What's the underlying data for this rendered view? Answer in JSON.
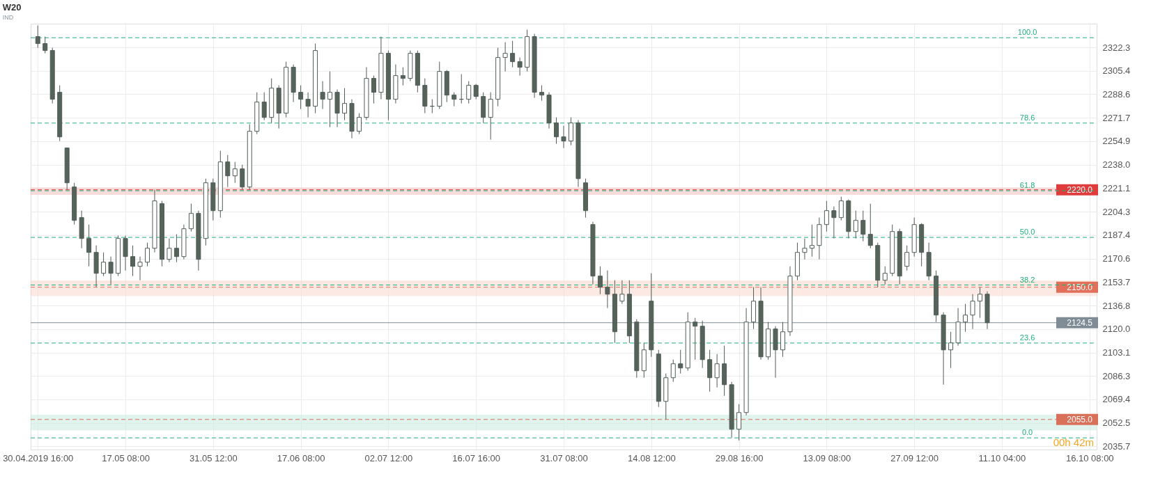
{
  "chart_data": {
    "type": "candlestick",
    "title": "W20",
    "subtitle": "IND",
    "categories": [
      "30.04.2019 16:00",
      null,
      null,
      null,
      null,
      null,
      null,
      null,
      null,
      null,
      null,
      null,
      "17.05 08:00",
      null,
      null,
      null,
      null,
      null,
      null,
      null,
      null,
      null,
      null,
      null,
      "31.05 12:00",
      null,
      null,
      null,
      null,
      null,
      null,
      null,
      null,
      null,
      null,
      null,
      "17.06 08:00",
      null,
      null,
      null,
      null,
      null,
      null,
      null,
      null,
      null,
      null,
      null,
      "02.07 12:00",
      null,
      null,
      null,
      null,
      null,
      null,
      null,
      null,
      null,
      null,
      null,
      "16.07 16:00",
      null,
      null,
      null,
      null,
      null,
      null,
      null,
      null,
      null,
      null,
      null,
      "31.07 08:00",
      null,
      null,
      null,
      null,
      null,
      null,
      null,
      null,
      null,
      null,
      null,
      "14.08 12:00",
      null,
      null,
      null,
      null,
      null,
      null,
      null,
      null,
      null,
      null,
      null,
      "29.08 16:00",
      null,
      null,
      null,
      null,
      null,
      null,
      null,
      null,
      null,
      null,
      null,
      "13.09 08:00",
      null,
      null,
      null,
      null,
      null,
      null,
      null,
      null,
      null,
      null,
      null,
      "27.09 12:00",
      null,
      null,
      null,
      null,
      null,
      null,
      null,
      null,
      null,
      null,
      null,
      "11.10 04:00",
      null,
      null,
      null,
      null,
      null,
      null,
      null,
      null,
      null,
      null,
      null,
      "16.10 08:00"
    ],
    "ohlc": [
      [
        2330,
        2338,
        2322,
        2325
      ],
      [
        2325,
        2330,
        2318,
        2320
      ],
      [
        2320,
        2322,
        2282,
        2285
      ],
      [
        2290,
        2295,
        2255,
        2258
      ],
      [
        2250,
        2250,
        2220,
        2225
      ],
      [
        2222,
        2225,
        2195,
        2198
      ],
      [
        2200,
        2205,
        2178,
        2185
      ],
      [
        2185,
        2195,
        2165,
        2175
      ],
      [
        2175,
        2180,
        2150,
        2160
      ],
      [
        2160,
        2175,
        2158,
        2168
      ],
      [
        2168,
        2172,
        2152,
        2160
      ],
      [
        2160,
        2187,
        2158,
        2185
      ],
      [
        2185,
        2187,
        2162,
        2172
      ],
      [
        2172,
        2180,
        2158,
        2165
      ],
      [
        2165,
        2172,
        2155,
        2168
      ],
      [
        2168,
        2182,
        2165,
        2178
      ],
      [
        2178,
        2220,
        2175,
        2212
      ],
      [
        2210,
        2212,
        2165,
        2170
      ],
      [
        2170,
        2185,
        2168,
        2178
      ],
      [
        2178,
        2188,
        2168,
        2172
      ],
      [
        2172,
        2195,
        2170,
        2192
      ],
      [
        2192,
        2210,
        2190,
        2203
      ],
      [
        2203,
        2205,
        2162,
        2170
      ],
      [
        2185,
        2228,
        2180,
        2225
      ],
      [
        2225,
        2228,
        2198,
        2205
      ],
      [
        2205,
        2248,
        2200,
        2240
      ],
      [
        2240,
        2245,
        2222,
        2230
      ],
      [
        2230,
        2240,
        2225,
        2235
      ],
      [
        2235,
        2238,
        2220,
        2222
      ],
      [
        2222,
        2267,
        2220,
        2262
      ],
      [
        2262,
        2290,
        2260,
        2283
      ],
      [
        2283,
        2290,
        2270,
        2272
      ],
      [
        2272,
        2300,
        2268,
        2293
      ],
      [
        2293,
        2295,
        2264,
        2275
      ],
      [
        2275,
        2312,
        2272,
        2308
      ],
      [
        2308,
        2310,
        2283,
        2290
      ],
      [
        2290,
        2295,
        2278,
        2285
      ],
      [
        2285,
        2290,
        2272,
        2280
      ],
      [
        2280,
        2325,
        2275,
        2320
      ],
      [
        2290,
        2298,
        2278,
        2285
      ],
      [
        2285,
        2305,
        2265,
        2290
      ],
      [
        2290,
        2292,
        2265,
        2275
      ],
      [
        2275,
        2293,
        2270,
        2282
      ],
      [
        2282,
        2285,
        2257,
        2262
      ],
      [
        2262,
        2275,
        2260,
        2272
      ],
      [
        2272,
        2308,
        2270,
        2300
      ],
      [
        2300,
        2302,
        2282,
        2290
      ],
      [
        2290,
        2330,
        2285,
        2318
      ],
      [
        2318,
        2320,
        2270,
        2285
      ],
      [
        2285,
        2310,
        2282,
        2302
      ],
      [
        2302,
        2308,
        2295,
        2300
      ],
      [
        2300,
        2320,
        2298,
        2318
      ],
      [
        2318,
        2320,
        2290,
        2295
      ],
      [
        2295,
        2300,
        2275,
        2280
      ],
      [
        2280,
        2285,
        2275,
        2280
      ],
      [
        2280,
        2312,
        2278,
        2305
      ],
      [
        2305,
        2306,
        2283,
        2288
      ],
      [
        2288,
        2290,
        2280,
        2285
      ],
      [
        2285,
        2303,
        2282,
        2285
      ],
      [
        2285,
        2298,
        2282,
        2295
      ],
      [
        2295,
        2296,
        2285,
        2287
      ],
      [
        2287,
        2290,
        2268,
        2272
      ],
      [
        2272,
        2290,
        2256,
        2285
      ],
      [
        2285,
        2322,
        2280,
        2315
      ],
      [
        2315,
        2326,
        2305,
        2318
      ],
      [
        2318,
        2327,
        2308,
        2312
      ],
      [
        2312,
        2315,
        2302,
        2308
      ],
      [
        2308,
        2335,
        2305,
        2330
      ],
      [
        2330,
        2332,
        2286,
        2290
      ],
      [
        2290,
        2295,
        2284,
        2288
      ],
      [
        2288,
        2290,
        2264,
        2268
      ],
      [
        2268,
        2272,
        2253,
        2258
      ],
      [
        2258,
        2266,
        2250,
        2255
      ],
      [
        2255,
        2272,
        2252,
        2268
      ],
      [
        2268,
        2270,
        2222,
        2228
      ],
      [
        2225,
        2228,
        2200,
        2205
      ],
      [
        2195,
        2197,
        2152,
        2158
      ],
      [
        2158,
        2165,
        2145,
        2150
      ],
      [
        2150,
        2162,
        2135,
        2145
      ],
      [
        2145,
        2155,
        2110,
        2118
      ],
      [
        2140,
        2155,
        2138,
        2145
      ],
      [
        2145,
        2155,
        2110,
        2115
      ],
      [
        2125,
        2127,
        2085,
        2090
      ],
      [
        2090,
        2110,
        2085,
        2105
      ],
      [
        2140,
        2160,
        2100,
        2105
      ],
      [
        2102,
        2105,
        2064,
        2068
      ],
      [
        2068,
        2088,
        2055,
        2085
      ],
      [
        2085,
        2098,
        2082,
        2095
      ],
      [
        2095,
        2105,
        2088,
        2092
      ],
      [
        2092,
        2132,
        2090,
        2125
      ],
      [
        2125,
        2128,
        2098,
        2122
      ],
      [
        2122,
        2126,
        2092,
        2098
      ],
      [
        2098,
        2105,
        2075,
        2085
      ],
      [
        2085,
        2102,
        2078,
        2095
      ],
      [
        2095,
        2108,
        2072,
        2080
      ],
      [
        2080,
        2082,
        2042,
        2048
      ],
      [
        2048,
        2066,
        2040,
        2060
      ],
      [
        2060,
        2135,
        2058,
        2125
      ],
      [
        2125,
        2150,
        2120,
        2140
      ],
      [
        2140,
        2150,
        2098,
        2100
      ],
      [
        2100,
        2125,
        2098,
        2120
      ],
      [
        2120,
        2122,
        2085,
        2105
      ],
      [
        2105,
        2125,
        2100,
        2118
      ],
      [
        2118,
        2165,
        2115,
        2158
      ],
      [
        2158,
        2182,
        2155,
        2175
      ],
      [
        2175,
        2185,
        2170,
        2178
      ],
      [
        2178,
        2195,
        2172,
        2180
      ],
      [
        2180,
        2200,
        2170,
        2195
      ],
      [
        2195,
        2212,
        2190,
        2205
      ],
      [
        2205,
        2208,
        2185,
        2200
      ],
      [
        2200,
        2215,
        2198,
        2212
      ],
      [
        2212,
        2213,
        2185,
        2190
      ],
      [
        2190,
        2205,
        2185,
        2198
      ],
      [
        2198,
        2205,
        2183,
        2188
      ],
      [
        2188,
        2210,
        2178,
        2180
      ],
      [
        2180,
        2182,
        2150,
        2155
      ],
      [
        2155,
        2165,
        2152,
        2160
      ],
      [
        2160,
        2195,
        2158,
        2190
      ],
      [
        2190,
        2192,
        2152,
        2158
      ],
      [
        2165,
        2180,
        2162,
        2175
      ],
      [
        2175,
        2200,
        2172,
        2195
      ],
      [
        2195,
        2196,
        2165,
        2175
      ],
      [
        2175,
        2182,
        2155,
        2158
      ],
      [
        2158,
        2162,
        2125,
        2130
      ],
      [
        2130,
        2132,
        2080,
        2105
      ],
      [
        2105,
        2118,
        2092,
        2110
      ],
      [
        2110,
        2135,
        2108,
        2125
      ],
      [
        2125,
        2138,
        2118,
        2130
      ],
      [
        2130,
        2145,
        2120,
        2140
      ],
      [
        2140,
        2150,
        2128,
        2145
      ],
      [
        2145,
        2147,
        2120,
        2124.5
      ],
      null,
      null,
      null,
      null,
      null,
      null,
      null,
      null,
      null,
      null,
      null,
      null,
      null,
      null
    ],
    "ylim": [
      2033.4,
      2339.3
    ],
    "yticks": [
      2035.7,
      2052.5,
      2069.4,
      2086.3,
      2103.1,
      {
        "value": 2120,
        "label": "2120.0"
      },
      2136.8,
      2153.7,
      2170.6,
      2187.4,
      2204.3,
      2221.1,
      {
        "value": 2238,
        "label": "2238.0"
      },
      2254.9,
      2271.7,
      2288.6,
      2305.4,
      2322.3
    ],
    "grid": true,
    "bands": [
      {
        "axis": "y",
        "from": 2216.6,
        "to": 2221.4,
        "color": "#f5c6c6"
      },
      {
        "axis": "y",
        "from": 2143.9,
        "to": 2154.7,
        "color": "#fbdcd2"
      },
      {
        "axis": "y",
        "from": 2047.4,
        "to": 2058.2,
        "color": "#cdeee2"
      }
    ],
    "ref_lines": [
      {
        "axis": "y",
        "value": 2220.0,
        "label": "2220.0",
        "color": "#e03c3c",
        "line_style": "dashed"
      },
      {
        "axis": "y",
        "value": 2150.0,
        "label": "2150.0",
        "color": "#e0705a",
        "line_style": "dashed"
      },
      {
        "axis": "y",
        "value": 2055.0,
        "label": "2055.0",
        "color": "#d9705a",
        "line_style": "dashed"
      },
      {
        "axis": "y",
        "value": 2124.5,
        "label": "2124.5",
        "color": "#7f8c95",
        "line_style": "solid"
      },
      {
        "axis": "y",
        "value": 2329.2,
        "color": "#1fae7a",
        "line_style": "dashed"
      },
      {
        "axis": "y",
        "value": 2267.9,
        "color": "#1fae7a",
        "line_style": "dashed"
      },
      {
        "axis": "y",
        "value": 2219.3,
        "color": "#1fae7a",
        "line_style": "dashed"
      },
      {
        "axis": "y",
        "value": 2185.8,
        "color": "#1fae7a",
        "line_style": "dashed"
      },
      {
        "axis": "y",
        "value": 2151.6,
        "color": "#1fae7a",
        "line_style": "dashed"
      },
      {
        "axis": "y",
        "value": 2109.9,
        "color": "#1fae7a",
        "line_style": "dashed"
      },
      {
        "axis": "y",
        "value": 2041.8,
        "color": "#1fae7a",
        "line_style": "dashed"
      }
    ],
    "annotations": [
      {
        "text": "100.0",
        "y": 2329.2
      },
      {
        "text": "78.6",
        "y": 2267.9
      },
      {
        "text": "61.8",
        "y": 2219.3
      },
      {
        "text": "50.0",
        "y": 2185.8
      },
      {
        "text": "38.2",
        "y": 2151.6
      },
      {
        "text": "23.6",
        "y": 2109.9
      },
      {
        "text": "0.0",
        "y": 2041.8
      },
      "00h 42m"
    ]
  }
}
